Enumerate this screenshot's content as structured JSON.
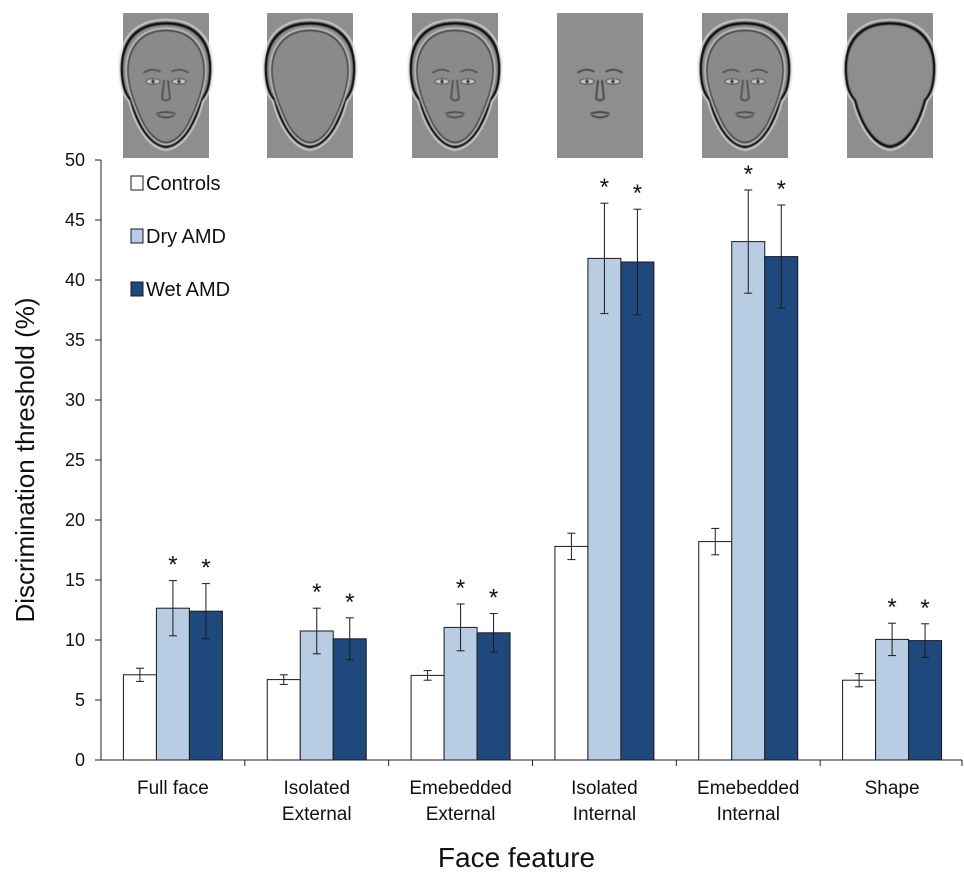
{
  "chart_data": {
    "type": "bar",
    "title": "",
    "xlabel": "Face feature",
    "ylabel": "Discrimination threshold (%)",
    "ylim": [
      0,
      50
    ],
    "yticks": [
      0,
      5,
      10,
      15,
      20,
      25,
      30,
      35,
      40,
      45,
      50
    ],
    "grid": false,
    "legend_position": "top-left",
    "categories": [
      [
        "Full face"
      ],
      [
        "Isolated",
        "External"
      ],
      [
        "Emebedded",
        "External"
      ],
      [
        "Isolated",
        "Internal"
      ],
      [
        "Emebedded",
        "Internal"
      ],
      [
        "Shape"
      ]
    ],
    "series": [
      {
        "name": "Controls",
        "color": "#ffffff",
        "values": [
          7.1,
          6.7,
          7.05,
          17.8,
          18.2,
          6.65
        ],
        "errors": [
          0.55,
          0.4,
          0.4,
          1.1,
          1.1,
          0.55
        ],
        "significant": [
          false,
          false,
          false,
          false,
          false,
          false
        ]
      },
      {
        "name": "Dry AMD",
        "color": "#b8cce4",
        "values": [
          12.65,
          10.75,
          11.05,
          41.8,
          43.2,
          10.05
        ],
        "errors": [
          2.3,
          1.9,
          1.95,
          4.6,
          4.3,
          1.35
        ],
        "significant": [
          true,
          true,
          true,
          true,
          true,
          true
        ]
      },
      {
        "name": "Wet AMD",
        "color": "#1f497d",
        "values": [
          12.4,
          10.1,
          10.6,
          41.5,
          41.95,
          9.95
        ],
        "errors": [
          2.3,
          1.75,
          1.6,
          4.4,
          4.3,
          1.4
        ],
        "significant": [
          true,
          true,
          true,
          true,
          true,
          true
        ]
      }
    ],
    "significance_marker": "*",
    "stimulus_images": [
      "full-face",
      "isolated-external",
      "embedded-external",
      "isolated-internal",
      "embedded-internal",
      "shape"
    ]
  }
}
